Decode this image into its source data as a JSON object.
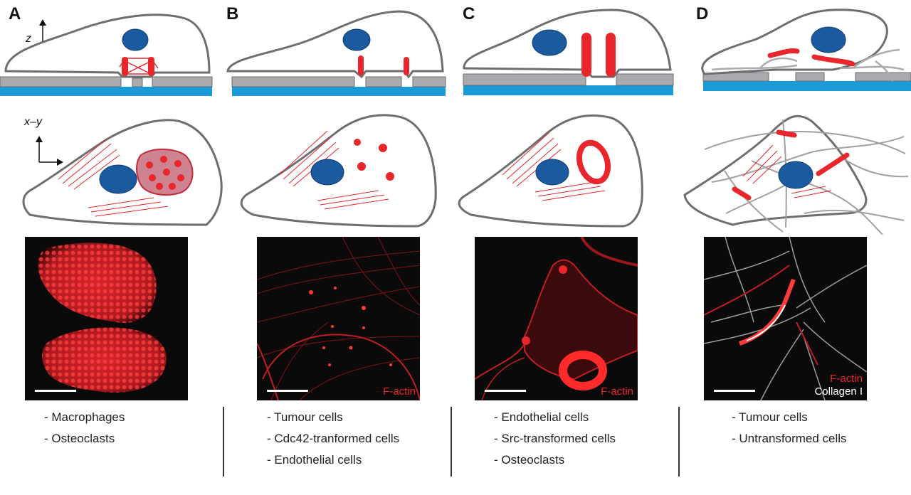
{
  "panels": [
    {
      "letter": "A",
      "cells": [
        "- Macrophages",
        "- Osteoclasts"
      ],
      "stain_labels": []
    },
    {
      "letter": "B",
      "cells": [
        "- Tumour cells",
        "- Cdc42-tranformed cells",
        "- Endothelial cells"
      ],
      "stain_labels": [
        "F-actin"
      ]
    },
    {
      "letter": "C",
      "cells": [
        "- Endothelial cells",
        "- Src-transformed cells",
        "- Osteoclasts"
      ],
      "stain_labels": [
        "F-actin"
      ]
    },
    {
      "letter": "D",
      "cells": [
        "- Tumour cells",
        "- Untransformed cells"
      ],
      "stain_labels": [
        "F-actin",
        "Collagen I"
      ]
    }
  ],
  "axes": {
    "side_view": "z",
    "top_view": "x–y"
  },
  "colors": {
    "nucleus": "#1c5aa0",
    "actin": "#e8262b",
    "substrate": "#1a9ad6",
    "matrix": "#a9abae",
    "outline": "#6d6e70",
    "collagen": "#a0a0a0"
  }
}
